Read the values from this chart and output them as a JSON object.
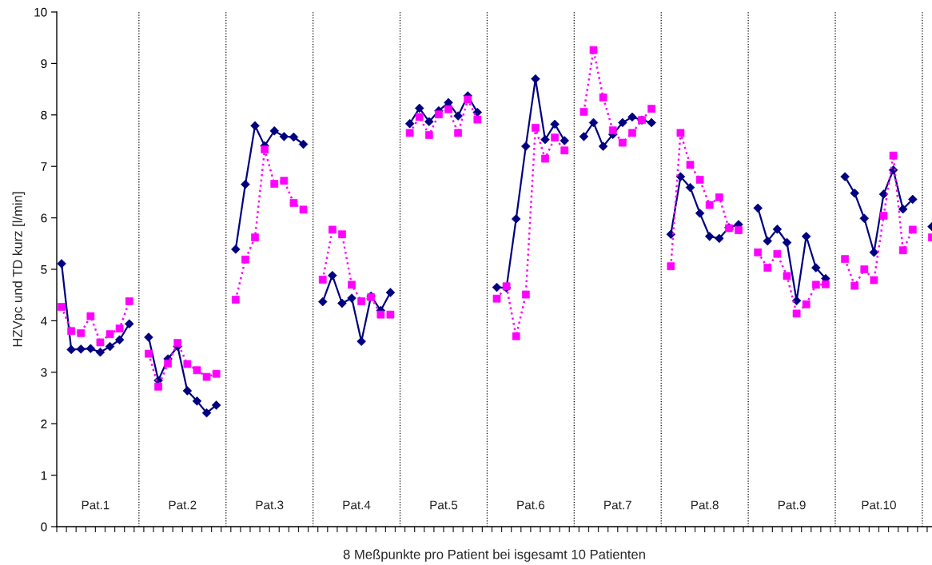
{
  "chart_data": {
    "type": "line",
    "xlabel": "8 Meßpunkte pro Patient bei isgesamt 10 Patienten",
    "ylabel": "HZVpc und TD kurz [l/min]",
    "categories": [
      null,
      null,
      null,
      null,
      null,
      null,
      null,
      null,
      null,
      null,
      null,
      null,
      null,
      null,
      null,
      null,
      null,
      null,
      null,
      null,
      null,
      null,
      null,
      null,
      null,
      null,
      null,
      null,
      null,
      null,
      null,
      null,
      null,
      null,
      null,
      null,
      null,
      null,
      null,
      null,
      null,
      null,
      null,
      null,
      null,
      null,
      null,
      null,
      null,
      null,
      null,
      null,
      null,
      null,
      null,
      null,
      null,
      null,
      null,
      null,
      null,
      null,
      null,
      null,
      null,
      null,
      null,
      null,
      null,
      null,
      null,
      null,
      null,
      null,
      null,
      null,
      null,
      null,
      null,
      null,
      null,
      null,
      null,
      null,
      null,
      null,
      null,
      null,
      null,
      null,
      null
    ],
    "series": [
      {
        "color": "#000080",
        "marker": "diamond",
        "line_style": "solid",
        "values": [
          5.11,
          3.44,
          3.45,
          3.46,
          3.39,
          3.5,
          3.63,
          3.94,
          null,
          3.68,
          2.84,
          3.26,
          3.5,
          2.64,
          2.44,
          2.21,
          2.36,
          null,
          5.39,
          6.65,
          7.79,
          7.4,
          7.69,
          7.58,
          7.57,
          7.43,
          null,
          4.37,
          4.88,
          4.34,
          4.44,
          3.6,
          4.48,
          4.2,
          4.55,
          null,
          7.83,
          8.13,
          7.87,
          8.08,
          8.24,
          7.98,
          8.37,
          8.05,
          null,
          4.65,
          4.64,
          5.98,
          7.39,
          8.7,
          7.52,
          7.82,
          7.5,
          null,
          7.58,
          7.85,
          7.39,
          7.62,
          7.85,
          7.96,
          7.9,
          7.85,
          null,
          5.68,
          6.8,
          6.59,
          6.09,
          5.64,
          5.6,
          5.81,
          5.87,
          null,
          6.19,
          5.55,
          5.78,
          5.52,
          4.39,
          5.64,
          5.03,
          4.82,
          null,
          6.8,
          6.48,
          5.99,
          5.33,
          6.46,
          6.93,
          6.17,
          6.36,
          null,
          5.83
        ]
      },
      {
        "color": "#ff00ff",
        "marker": "square",
        "line_style": "dotted",
        "values": [
          4.27,
          3.8,
          3.76,
          4.09,
          3.58,
          3.74,
          3.85,
          4.38,
          null,
          3.36,
          2.72,
          3.17,
          3.57,
          3.16,
          3.04,
          2.91,
          2.97,
          null,
          4.41,
          5.19,
          5.62,
          7.33,
          6.66,
          6.72,
          6.29,
          6.16,
          null,
          4.8,
          5.77,
          5.68,
          4.7,
          4.38,
          4.46,
          4.12,
          4.12,
          null,
          7.65,
          7.96,
          7.61,
          8.01,
          8.11,
          7.65,
          8.3,
          7.91,
          null,
          4.43,
          4.67,
          3.7,
          4.51,
          7.75,
          7.15,
          7.56,
          7.31,
          null,
          8.06,
          9.26,
          8.34,
          7.7,
          7.46,
          7.65,
          7.9,
          8.12,
          null,
          5.06,
          7.65,
          7.03,
          6.74,
          6.25,
          6.4,
          5.8,
          5.76,
          null,
          5.33,
          5.03,
          5.3,
          4.87,
          4.14,
          4.32,
          4.7,
          4.71,
          null,
          5.2,
          4.68,
          5.0,
          4.79,
          6.04,
          7.21,
          5.37,
          5.77,
          null,
          5.62
        ]
      }
    ],
    "ylim": [
      0,
      10
    ],
    "yticks": [
      0,
      1,
      2,
      3,
      4,
      5,
      6,
      7,
      8,
      9,
      10
    ],
    "tick_labels": "y",
    "grid": false,
    "legend": false,
    "annotations": [
      "Pat.1",
      "Pat.2",
      "Pat.3",
      "Pat.4",
      "Pat.5",
      "Pat.6",
      "Pat.7",
      "Pat.8",
      "Pat.9",
      "Pat.10"
    ]
  }
}
